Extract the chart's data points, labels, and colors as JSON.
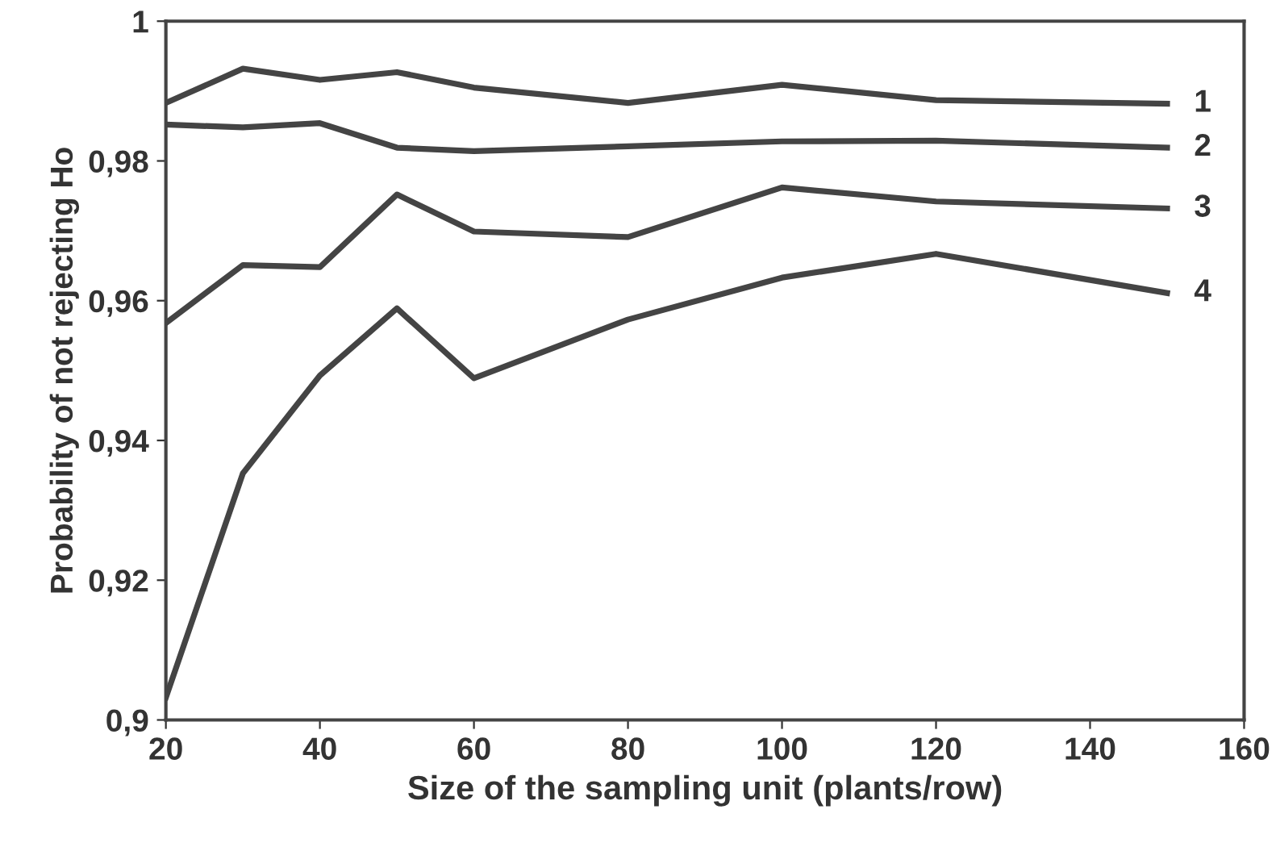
{
  "chart_data": {
    "type": "line",
    "xlabel": "Size of the sampling unit (plants/row)",
    "ylabel": "Probability of not rejecting Ho",
    "x": [
      20,
      30,
      40,
      50,
      60,
      80,
      100,
      120,
      150
    ],
    "series": [
      {
        "name": "1",
        "color": "#444444",
        "values": [
          0.9883,
          0.9932,
          0.9916,
          0.9927,
          0.9905,
          0.9883,
          0.9909,
          0.9887,
          0.9882
        ]
      },
      {
        "name": "2",
        "color": "#444444",
        "values": [
          0.9852,
          0.9848,
          0.9854,
          0.9819,
          0.9814,
          0.9821,
          0.9828,
          0.9829,
          0.9819
        ]
      },
      {
        "name": "3",
        "color": "#444444",
        "values": [
          0.9568,
          0.9651,
          0.9648,
          0.9752,
          0.9699,
          0.9691,
          0.9762,
          0.9742,
          0.9732
        ]
      },
      {
        "name": "4",
        "color": "#444444",
        "values": [
          0.9032,
          0.9353,
          0.9493,
          0.9589,
          0.9489,
          0.9573,
          0.9633,
          0.9667,
          0.9611
        ]
      }
    ],
    "xlim": [
      20,
      160
    ],
    "xticks": [
      20,
      40,
      60,
      80,
      100,
      120,
      140,
      160
    ],
    "ylim": [
      0.9,
      1
    ],
    "yticks": [
      {
        "value": 0.9,
        "label": "0,9"
      },
      {
        "value": 0.92,
        "label": "0,92"
      },
      {
        "value": 0.94,
        "label": "0,94"
      },
      {
        "value": 0.96,
        "label": "0,96"
      },
      {
        "value": 0.98,
        "label": "0,98"
      },
      {
        "value": 1,
        "label": "1"
      }
    ],
    "grid": false,
    "legend": false,
    "marker": "none",
    "line_style": "solid"
  }
}
